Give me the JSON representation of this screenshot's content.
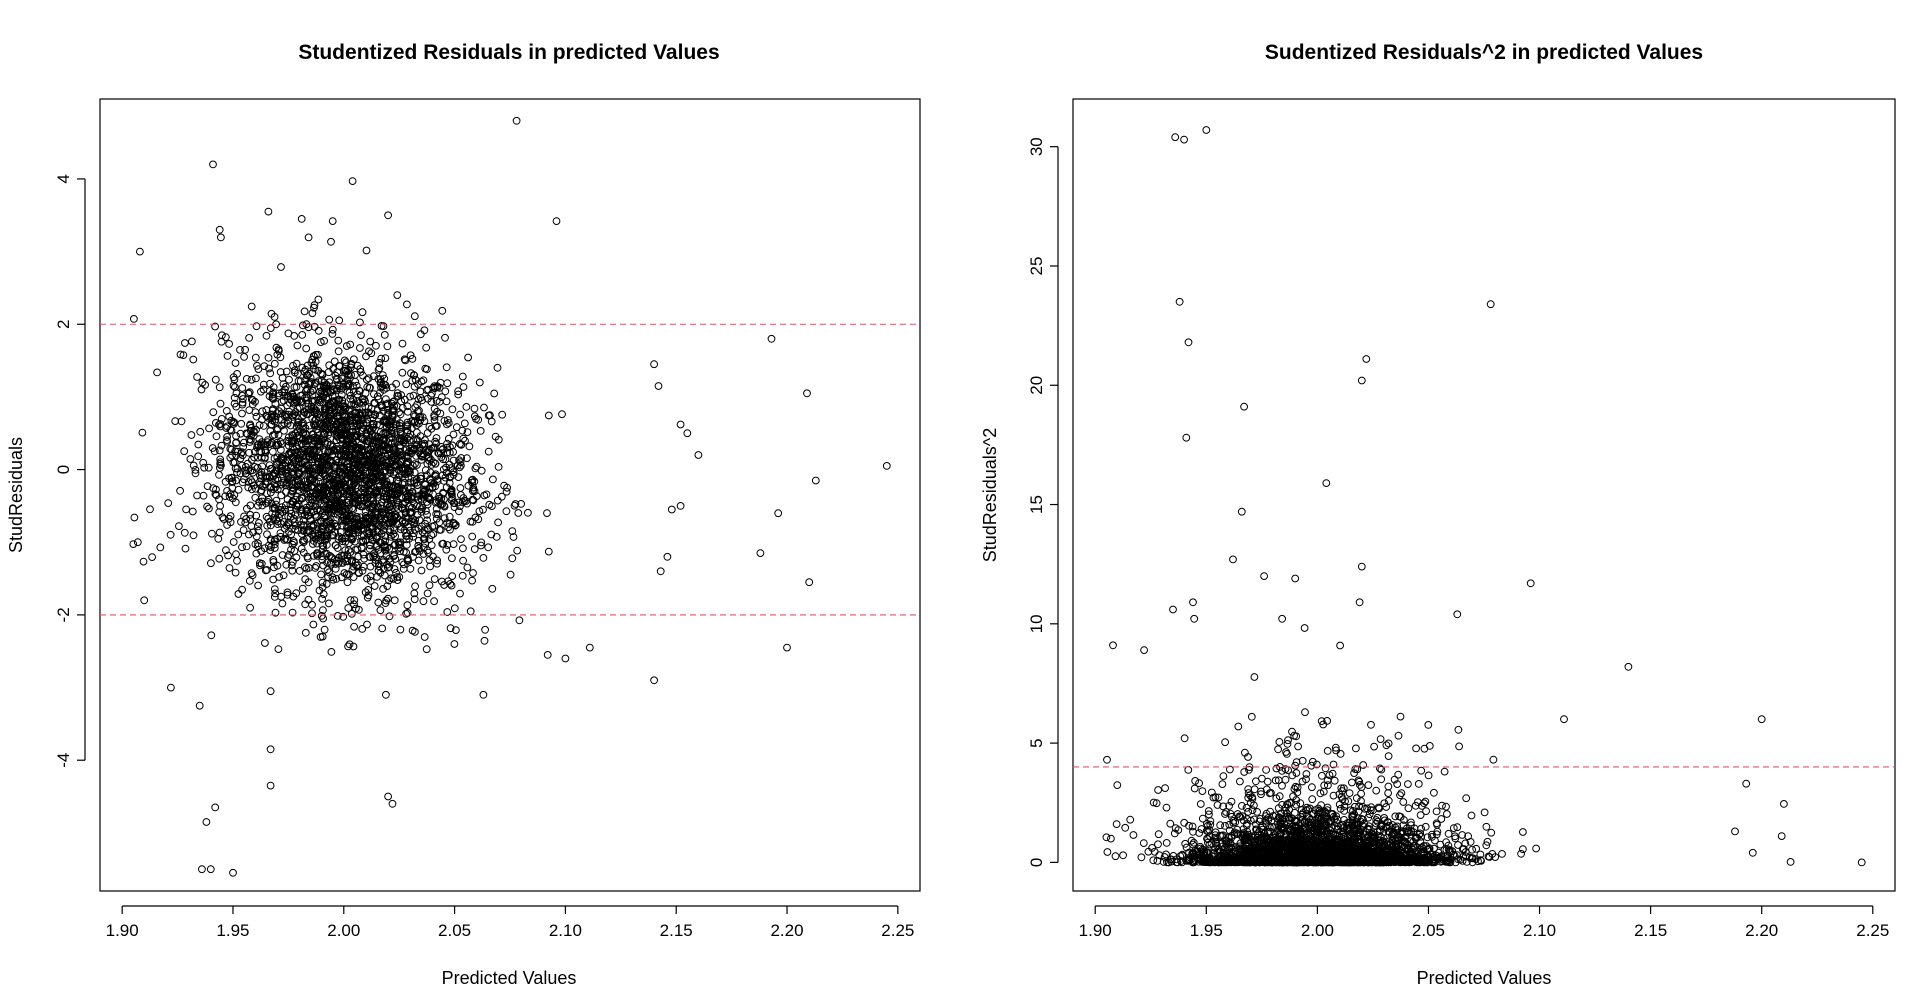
{
  "chart_data": [
    {
      "type": "scatter",
      "title": "Studentized Residuals in predicted Values",
      "xlabel": "Predicted Values",
      "ylabel": "StudResiduals",
      "xlim": [
        1.89,
        2.26
      ],
      "ylim": [
        -5.8,
        5.1
      ],
      "xticks": [
        1.9,
        1.95,
        2.0,
        2.05,
        2.1,
        2.15,
        2.2,
        2.25
      ],
      "xtick_labels": [
        "1.90",
        "1.95",
        "2.00",
        "2.05",
        "2.10",
        "2.15",
        "2.20",
        "2.25"
      ],
      "yticks": [
        -4,
        -2,
        0,
        2,
        4
      ],
      "ytick_labels": [
        "-4",
        "-2",
        "0",
        "2",
        "4"
      ],
      "reference_lines": [
        2,
        -2
      ],
      "reference_color": "#DF536B",
      "grid": false,
      "legend": "none",
      "point_count_approx": 3000,
      "x_center": 2.0,
      "x_spread": 0.04,
      "notable_points": [
        {
          "x": 1.936,
          "y": -5.5
        },
        {
          "x": 1.94,
          "y": -5.5
        },
        {
          "x": 1.95,
          "y": -5.55
        },
        {
          "x": 1.938,
          "y": -4.85
        },
        {
          "x": 1.942,
          "y": -4.65
        },
        {
          "x": 1.935,
          "y": -3.25
        },
        {
          "x": 1.922,
          "y": -3.0
        },
        {
          "x": 1.967,
          "y": -3.85
        },
        {
          "x": 1.967,
          "y": -4.35
        },
        {
          "x": 1.967,
          "y": -3.05
        },
        {
          "x": 2.02,
          "y": -4.5
        },
        {
          "x": 2.022,
          "y": -4.6
        },
        {
          "x": 2.019,
          "y": -3.1
        },
        {
          "x": 2.063,
          "y": -3.1
        },
        {
          "x": 2.14,
          "y": -2.9
        },
        {
          "x": 2.111,
          "y": -2.45
        },
        {
          "x": 2.2,
          "y": -2.45
        },
        {
          "x": 2.21,
          "y": -1.55
        },
        {
          "x": 2.188,
          "y": -1.15
        },
        {
          "x": 2.196,
          "y": -0.6
        },
        {
          "x": 2.213,
          "y": -0.15
        },
        {
          "x": 2.209,
          "y": 1.05
        },
        {
          "x": 2.193,
          "y": 1.8
        },
        {
          "x": 2.245,
          "y": 0.05
        },
        {
          "x": 1.941,
          "y": 4.2
        },
        {
          "x": 2.004,
          "y": 3.97
        },
        {
          "x": 2.078,
          "y": 4.8
        },
        {
          "x": 1.908,
          "y": 3.0
        },
        {
          "x": 2.096,
          "y": 3.42
        },
        {
          "x": 1.966,
          "y": 3.55
        },
        {
          "x": 1.944,
          "y": 3.3
        },
        {
          "x": 2.02,
          "y": 3.5
        },
        {
          "x": 1.981,
          "y": 3.45
        },
        {
          "x": 1.995,
          "y": 3.42
        },
        {
          "x": 2.16,
          "y": 0.2
        },
        {
          "x": 2.155,
          "y": 0.5
        },
        {
          "x": 2.152,
          "y": 0.62
        },
        {
          "x": 2.142,
          "y": 1.15
        },
        {
          "x": 2.14,
          "y": 1.45
        },
        {
          "x": 2.143,
          "y": -1.4
        },
        {
          "x": 2.146,
          "y": -1.2
        },
        {
          "x": 2.152,
          "y": -0.5
        },
        {
          "x": 2.148,
          "y": -0.55
        },
        {
          "x": 2.1,
          "y": -2.6
        },
        {
          "x": 2.092,
          "y": -2.55
        }
      ]
    },
    {
      "type": "scatter",
      "title": "Sudentized Residuals^2 in predicted Values",
      "xlabel": "Predicted Values",
      "ylabel": "StudResiduals^2",
      "xlim": [
        1.89,
        2.26
      ],
      "ylim": [
        -1.2,
        32.0
      ],
      "xticks": [
        1.9,
        1.95,
        2.0,
        2.05,
        2.1,
        2.15,
        2.2,
        2.25
      ],
      "xtick_labels": [
        "1.90",
        "1.95",
        "2.00",
        "2.05",
        "2.10",
        "2.15",
        "2.20",
        "2.25"
      ],
      "yticks": [
        0,
        5,
        10,
        15,
        20,
        25,
        30
      ],
      "ytick_labels": [
        "0",
        "5",
        "10",
        "15",
        "20",
        "25",
        "30"
      ],
      "reference_lines": [
        4
      ],
      "reference_color": "#DF536B",
      "grid": false,
      "legend": "none",
      "point_count_approx": 3000,
      "notable_points": [
        {
          "x": 1.936,
          "y": 30.4
        },
        {
          "x": 1.94,
          "y": 30.3
        },
        {
          "x": 1.95,
          "y": 30.7
        },
        {
          "x": 1.938,
          "y": 23.5
        },
        {
          "x": 1.942,
          "y": 21.8
        },
        {
          "x": 1.941,
          "y": 17.8
        },
        {
          "x": 2.078,
          "y": 23.4
        },
        {
          "x": 2.022,
          "y": 21.1
        },
        {
          "x": 2.02,
          "y": 20.2
        },
        {
          "x": 1.967,
          "y": 19.1
        },
        {
          "x": 1.966,
          "y": 14.7
        },
        {
          "x": 2.004,
          "y": 15.9
        },
        {
          "x": 1.962,
          "y": 12.7
        },
        {
          "x": 1.976,
          "y": 12.0
        },
        {
          "x": 1.99,
          "y": 11.9
        },
        {
          "x": 2.02,
          "y": 12.4
        },
        {
          "x": 2.096,
          "y": 11.7
        },
        {
          "x": 2.019,
          "y": 10.9
        },
        {
          "x": 1.935,
          "y": 10.6
        },
        {
          "x": 1.944,
          "y": 10.9
        },
        {
          "x": 2.063,
          "y": 10.4
        },
        {
          "x": 1.908,
          "y": 9.1
        },
        {
          "x": 1.922,
          "y": 8.9
        },
        {
          "x": 2.14,
          "y": 8.2
        },
        {
          "x": 2.111,
          "y": 6.0
        },
        {
          "x": 2.2,
          "y": 6.0
        },
        {
          "x": 2.193,
          "y": 3.3
        },
        {
          "x": 2.21,
          "y": 2.45
        },
        {
          "x": 2.188,
          "y": 1.3
        },
        {
          "x": 2.209,
          "y": 1.1
        },
        {
          "x": 2.196,
          "y": 0.4
        },
        {
          "x": 2.213,
          "y": 0.02
        },
        {
          "x": 2.245,
          "y": 0.0
        }
      ]
    }
  ]
}
